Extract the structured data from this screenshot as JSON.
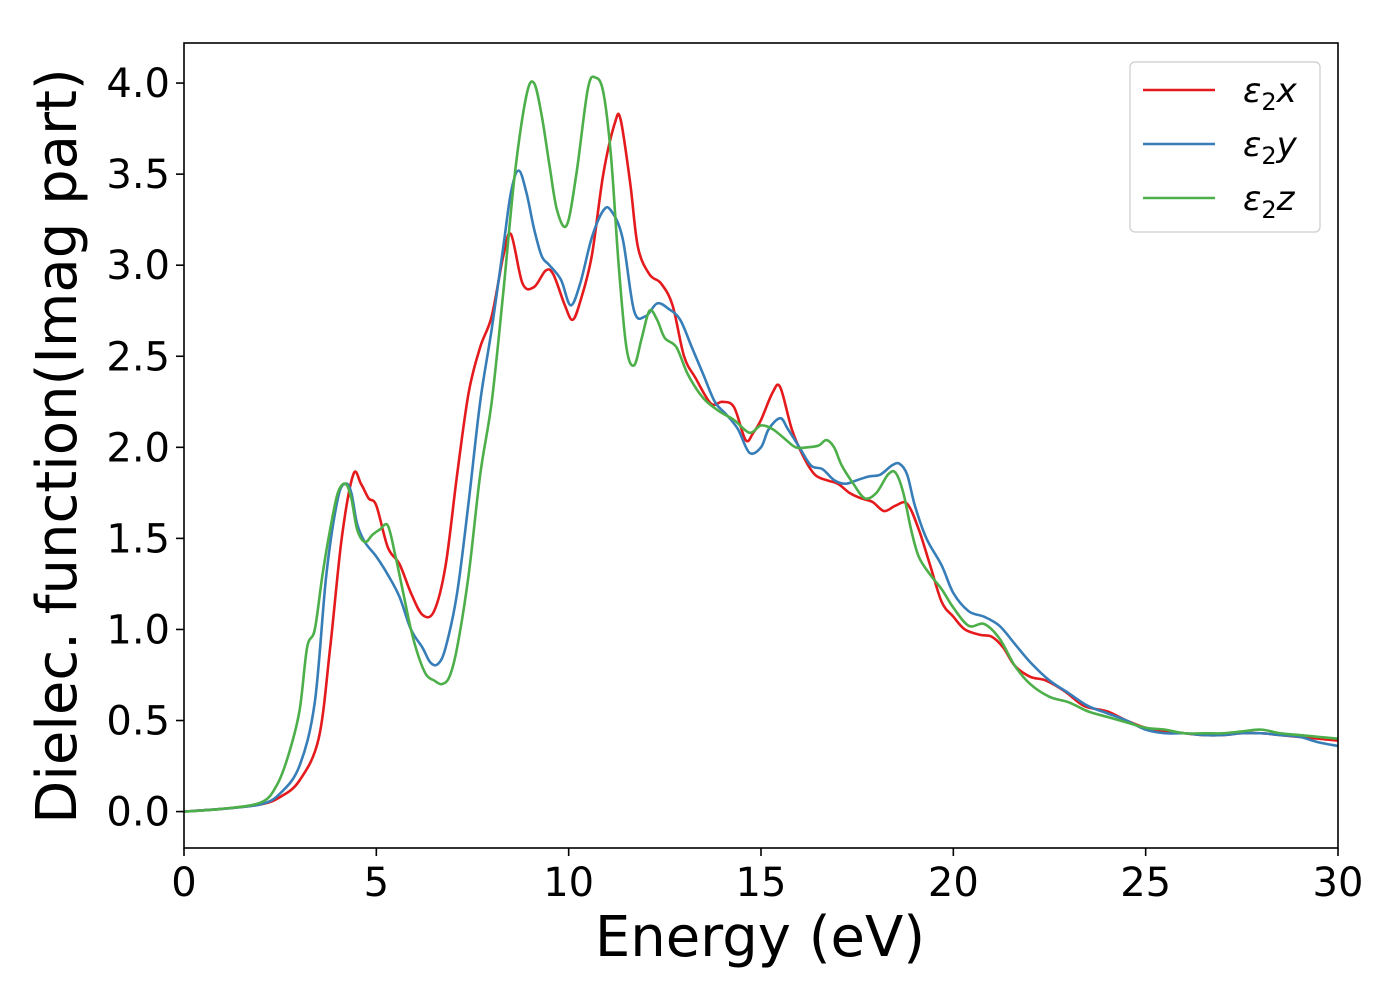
{
  "chart_data": {
    "type": "line",
    "xlabel": "Energy (eV)",
    "ylabel": "Dielec. function(Imag part)",
    "xlim": [
      0,
      30
    ],
    "ylim": [
      -0.2,
      4.22
    ],
    "xticks": [
      0,
      5,
      10,
      15,
      20,
      25,
      30
    ],
    "xtick_labels": [
      "0",
      "5",
      "10",
      "15",
      "20",
      "25",
      "30"
    ],
    "yticks": [
      0.0,
      0.5,
      1.0,
      1.5,
      2.0,
      2.5,
      3.0,
      3.5,
      4.0
    ],
    "ytick_labels": [
      "0.0",
      "0.5",
      "1.0",
      "1.5",
      "2.0",
      "2.5",
      "3.0",
      "3.5",
      "4.0"
    ],
    "grid": false,
    "legend_position": "top-right",
    "series": [
      {
        "name": "ε₂x",
        "legend_base": "ε",
        "legend_sub": "2",
        "legend_var": "x",
        "color": "#e41a1c",
        "x": [
          0,
          1,
          2,
          2.5,
          3,
          3.5,
          3.8,
          4.1,
          4.4,
          4.6,
          4.8,
          5.0,
          5.3,
          5.6,
          5.9,
          6.2,
          6.5,
          6.8,
          7.1,
          7.4,
          7.7,
          8.0,
          8.3,
          8.5,
          8.8,
          9.1,
          9.4,
          9.6,
          9.9,
          10.1,
          10.3,
          10.6,
          10.9,
          11.2,
          11.35,
          11.6,
          11.8,
          12.1,
          12.4,
          12.7,
          13.0,
          13.3,
          13.7,
          14.0,
          14.3,
          14.6,
          14.8,
          15.0,
          15.3,
          15.5,
          15.8,
          16.1,
          16.4,
          16.7,
          17.0,
          17.3,
          17.6,
          17.9,
          18.2,
          18.5,
          18.8,
          19.1,
          19.4,
          19.7,
          20.0,
          20.3,
          20.7,
          21.0,
          21.3,
          21.6,
          22.0,
          22.4,
          22.9,
          23.4,
          24.0,
          24.5,
          25.0,
          25.5,
          26.0,
          26.5,
          27.0,
          27.5,
          28.0,
          28.5,
          29.0,
          29.5,
          30.0
        ],
        "y": [
          0.0,
          0.015,
          0.04,
          0.08,
          0.17,
          0.4,
          0.9,
          1.5,
          1.85,
          1.8,
          1.72,
          1.68,
          1.45,
          1.36,
          1.2,
          1.08,
          1.1,
          1.35,
          1.85,
          2.3,
          2.55,
          2.72,
          3.05,
          3.17,
          2.9,
          2.88,
          2.97,
          2.95,
          2.78,
          2.7,
          2.8,
          3.05,
          3.5,
          3.78,
          3.8,
          3.45,
          3.1,
          2.95,
          2.9,
          2.78,
          2.5,
          2.38,
          2.24,
          2.25,
          2.22,
          2.04,
          2.08,
          2.15,
          2.3,
          2.33,
          2.1,
          1.95,
          1.85,
          1.82,
          1.8,
          1.75,
          1.72,
          1.7,
          1.65,
          1.68,
          1.69,
          1.55,
          1.35,
          1.15,
          1.07,
          1.0,
          0.97,
          0.96,
          0.9,
          0.8,
          0.74,
          0.72,
          0.66,
          0.58,
          0.55,
          0.5,
          0.46,
          0.44,
          0.43,
          0.42,
          0.42,
          0.43,
          0.43,
          0.42,
          0.41,
          0.4,
          0.39
        ]
      },
      {
        "name": "ε₂y",
        "legend_base": "ε",
        "legend_sub": "2",
        "legend_var": "y",
        "color": "#377eb8",
        "x": [
          0,
          1,
          2,
          2.5,
          3,
          3.4,
          3.7,
          4.0,
          4.2,
          4.35,
          4.5,
          4.7,
          5.0,
          5.3,
          5.6,
          5.9,
          6.2,
          6.4,
          6.6,
          6.8,
          7.1,
          7.4,
          7.7,
          8.0,
          8.3,
          8.5,
          8.7,
          8.9,
          9.1,
          9.3,
          9.5,
          9.8,
          10.05,
          10.3,
          10.6,
          10.9,
          11.1,
          11.4,
          11.7,
          12.0,
          12.3,
          12.6,
          12.9,
          13.2,
          13.5,
          13.8,
          14.1,
          14.4,
          14.7,
          15.0,
          15.2,
          15.5,
          15.7,
          16.0,
          16.3,
          16.6,
          16.9,
          17.2,
          17.5,
          17.8,
          18.1,
          18.4,
          18.6,
          18.8,
          19.0,
          19.3,
          19.7,
          20.0,
          20.4,
          20.8,
          21.2,
          21.6,
          22.0,
          22.5,
          23.0,
          23.5,
          24.0,
          24.5,
          25.0,
          25.5,
          26.0,
          26.5,
          27.0,
          27.5,
          28.0,
          28.5,
          29.0,
          29.5,
          30.0
        ],
        "y": [
          0.0,
          0.015,
          0.04,
          0.1,
          0.25,
          0.6,
          1.3,
          1.72,
          1.8,
          1.75,
          1.58,
          1.48,
          1.4,
          1.3,
          1.18,
          1.0,
          0.9,
          0.82,
          0.81,
          0.9,
          1.2,
          1.7,
          2.25,
          2.65,
          3.1,
          3.4,
          3.52,
          3.4,
          3.2,
          3.05,
          3.0,
          2.92,
          2.78,
          2.9,
          3.15,
          3.3,
          3.3,
          3.15,
          2.75,
          2.72,
          2.79,
          2.76,
          2.7,
          2.55,
          2.4,
          2.25,
          2.18,
          2.1,
          1.97,
          2.0,
          2.1,
          2.16,
          2.1,
          2.0,
          1.9,
          1.88,
          1.82,
          1.8,
          1.82,
          1.84,
          1.85,
          1.9,
          1.91,
          1.85,
          1.68,
          1.5,
          1.35,
          1.2,
          1.1,
          1.07,
          1.02,
          0.92,
          0.82,
          0.72,
          0.65,
          0.58,
          0.54,
          0.5,
          0.45,
          0.43,
          0.43,
          0.42,
          0.42,
          0.43,
          0.43,
          0.42,
          0.41,
          0.38,
          0.36
        ]
      },
      {
        "name": "ε₂z",
        "legend_base": "ε",
        "legend_sub": "2",
        "legend_var": "z",
        "color": "#4daf4a",
        "x": [
          0,
          1,
          2,
          2.4,
          2.7,
          3.0,
          3.2,
          3.4,
          3.6,
          3.8,
          4.0,
          4.2,
          4.35,
          4.5,
          4.7,
          4.9,
          5.1,
          5.3,
          5.5,
          5.7,
          5.9,
          6.1,
          6.3,
          6.5,
          6.7,
          6.9,
          7.1,
          7.4,
          7.7,
          8.0,
          8.3,
          8.6,
          8.9,
          9.1,
          9.3,
          9.5,
          9.7,
          9.95,
          10.2,
          10.5,
          10.7,
          10.9,
          11.1,
          11.3,
          11.5,
          11.7,
          11.9,
          12.1,
          12.3,
          12.5,
          12.8,
          13.1,
          13.5,
          13.9,
          14.3,
          14.7,
          15.0,
          15.3,
          15.6,
          15.9,
          16.2,
          16.5,
          16.7,
          16.9,
          17.1,
          17.4,
          17.7,
          18.0,
          18.3,
          18.5,
          18.7,
          18.9,
          19.1,
          19.4,
          19.7,
          20.0,
          20.4,
          20.8,
          21.2,
          21.6,
          22.0,
          22.5,
          23.0,
          23.5,
          24.0,
          24.5,
          25.0,
          25.5,
          26.0,
          26.5,
          27.0,
          27.5,
          28.0,
          28.5,
          29.0,
          29.5,
          30.0
        ],
        "y": [
          0.0,
          0.015,
          0.05,
          0.14,
          0.3,
          0.55,
          0.9,
          1.0,
          1.3,
          1.55,
          1.75,
          1.8,
          1.72,
          1.55,
          1.48,
          1.52,
          1.55,
          1.57,
          1.4,
          1.2,
          1.0,
          0.85,
          0.75,
          0.72,
          0.7,
          0.74,
          0.9,
          1.3,
          1.85,
          2.25,
          2.85,
          3.5,
          3.93,
          4.0,
          3.82,
          3.55,
          3.3,
          3.22,
          3.5,
          3.97,
          4.03,
          3.95,
          3.6,
          3.0,
          2.55,
          2.45,
          2.6,
          2.75,
          2.7,
          2.6,
          2.55,
          2.4,
          2.27,
          2.2,
          2.15,
          2.08,
          2.12,
          2.1,
          2.05,
          2.0,
          2.0,
          2.01,
          2.04,
          2.0,
          1.9,
          1.8,
          1.72,
          1.75,
          1.85,
          1.86,
          1.75,
          1.55,
          1.4,
          1.3,
          1.22,
          1.12,
          1.02,
          1.03,
          0.95,
          0.8,
          0.7,
          0.63,
          0.6,
          0.55,
          0.52,
          0.49,
          0.46,
          0.45,
          0.43,
          0.43,
          0.43,
          0.44,
          0.45,
          0.43,
          0.42,
          0.41,
          0.4
        ]
      }
    ]
  }
}
